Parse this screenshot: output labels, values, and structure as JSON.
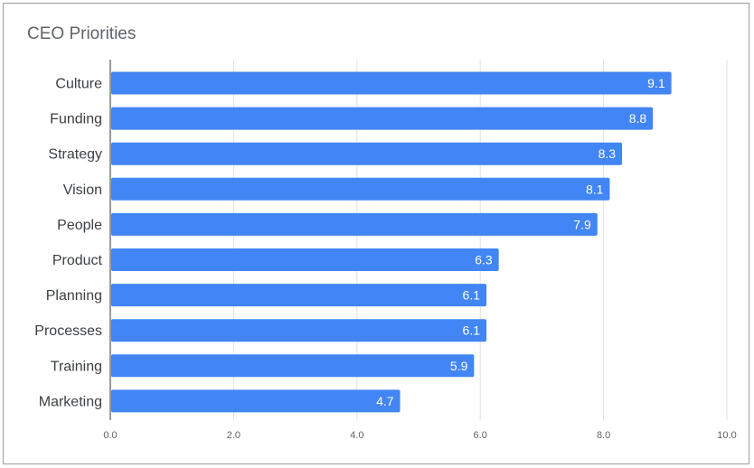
{
  "chart_data": {
    "type": "bar",
    "orientation": "horizontal",
    "title": "CEO Priorities",
    "categories": [
      "Culture",
      "Funding",
      "Strategy",
      "Vision",
      "People",
      "Product",
      "Planning",
      "Processes",
      "Training",
      "Marketing"
    ],
    "values": [
      9.1,
      8.8,
      8.3,
      8.1,
      7.9,
      6.3,
      6.1,
      6.1,
      5.9,
      4.7
    ],
    "value_labels": [
      "9.1",
      "8.8",
      "8.3",
      "8.1",
      "7.9",
      "6.3",
      "6.1",
      "6.1",
      "5.9",
      "4.7"
    ],
    "xlim": [
      0,
      10
    ],
    "xticks": [
      0,
      2,
      4,
      6,
      8,
      10
    ],
    "xtick_labels": [
      "0.0",
      "2.0",
      "4.0",
      "6.0",
      "8.0",
      "10.0"
    ],
    "grid": true,
    "legend": "none",
    "bar_color": "#4285f4"
  }
}
